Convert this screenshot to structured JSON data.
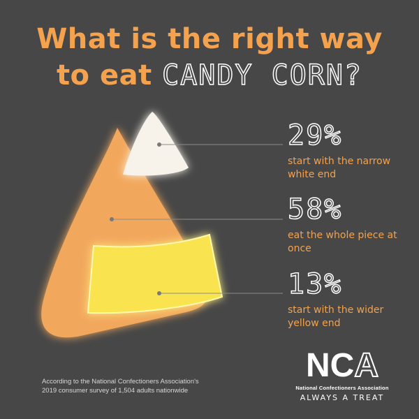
{
  "header": {
    "title_line1": "What is the right way",
    "title_line2_prefix": "to eat ",
    "title_line2_emphasis": "CANDY CORN?"
  },
  "chart_data": {
    "type": "pie",
    "title": "What is the right way to eat CANDY CORN?",
    "unit": "%",
    "categories": [
      "start with the narrow white end",
      "eat the whole piece at once",
      "start with the wider yellow end"
    ],
    "values": [
      29,
      58,
      13
    ],
    "labels": [
      "29%",
      "58%",
      "13%"
    ],
    "colors": [
      "#f7f3ea",
      "#f2a85c",
      "#f9e34f"
    ]
  },
  "source": {
    "line1": "According to the National Confectioners Association's",
    "line2": "2019 consumer survey of 1,504 adults nationwide"
  },
  "logo": {
    "letters": [
      "N",
      "C",
      "A"
    ],
    "name": "National Confectioners Association",
    "tagline": "ALWAYS A TREAT"
  },
  "colors": {
    "background": "#474747",
    "accent": "#f4a24d",
    "white_segment": "#f7f3ea",
    "orange_segment": "#f2a85c",
    "yellow_segment": "#f9e34f"
  }
}
